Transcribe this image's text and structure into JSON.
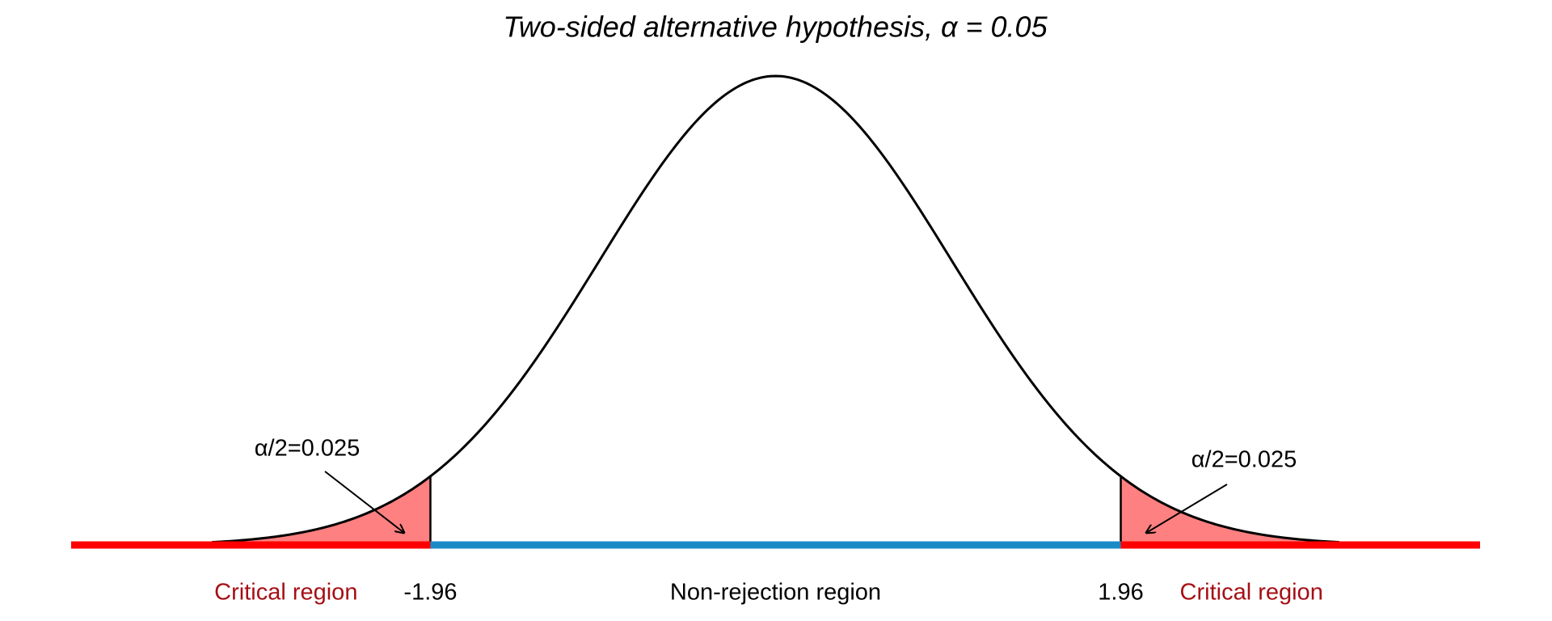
{
  "chart_data": {
    "type": "normal",
    "title": "Two-sided alternative hypothesis, α = 0.05",
    "xlim": [
      -4,
      4
    ],
    "xticks": [
      -1.96,
      1.96
    ],
    "critical_values": [
      -1.96,
      1.96
    ],
    "annotations": [
      "α/2=0.025",
      "α/2=0.025"
    ],
    "region_labels": [
      "Critical region",
      "Non-rejection region",
      "Critical region"
    ],
    "colors": {
      "critical": "#ff0000",
      "non_rejection": "#1a8ac6",
      "shade": "#ff8080",
      "critical_label": "#a50f15",
      "curve": "#000000"
    }
  }
}
